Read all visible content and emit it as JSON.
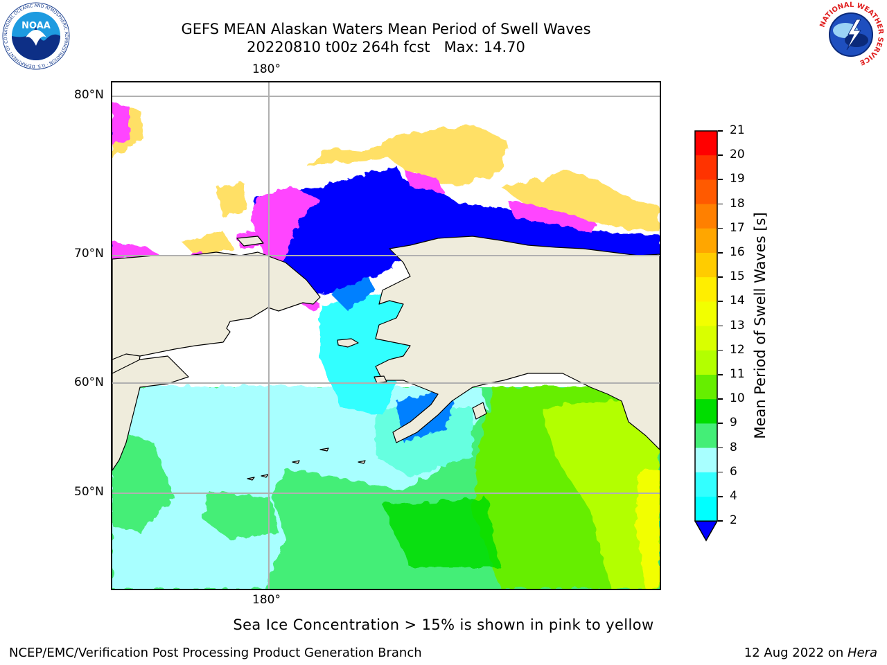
{
  "title": {
    "line1": "GEFS MEAN Alaskan Waters Mean Period of Swell Waves",
    "line2": "20220810 t00z 264h fcst   Max: 14.70"
  },
  "map": {
    "lon_labels": [
      "180°",
      "180°"
    ],
    "lat_labels": [
      "80°N",
      "70°N",
      "60°N",
      "50°N"
    ],
    "colors": {
      "land": "#efecdc",
      "coastline": "#000000",
      "gridline": "#b0b0b0",
      "ice_low": "#ff44ff",
      "ice_high": "#ffe066"
    }
  },
  "colorbar": {
    "title": "Mean Period of Swell Waves [s]",
    "ticks": [
      "21",
      "20",
      "19",
      "18",
      "17",
      "16",
      "15",
      "14",
      "13",
      "12",
      "11",
      "10",
      "9",
      "8",
      "6",
      "4",
      "2"
    ],
    "colors": [
      "#ff0000",
      "#ff3300",
      "#ff5a00",
      "#ff8000",
      "#ffa600",
      "#ffcc00",
      "#ffee00",
      "#f2ff00",
      "#d9ff00",
      "#b3ff00",
      "#66ee00",
      "#00dd00",
      "#44ee77",
      "#a8ffff",
      "#33ffff",
      "#00ffff",
      "#0080ff",
      "#0000ff"
    ]
  },
  "caption": "Sea Ice Concentration > 15% is shown in pink to yellow",
  "footer": {
    "left": "NCEP/EMC/Verification Post Processing Product Generation Branch",
    "right_date": "12 Aug 2022 on ",
    "right_host": "Hera"
  },
  "logos": {
    "noaa": "NOAA",
    "noaa_ring": "NATIONAL OCEANIC AND ATMOSPHERIC ADMINISTRATION · U.S. DEPARTMENT OF COMMERCE",
    "nws_ring": "NATIONAL WEATHER SERVICE"
  }
}
